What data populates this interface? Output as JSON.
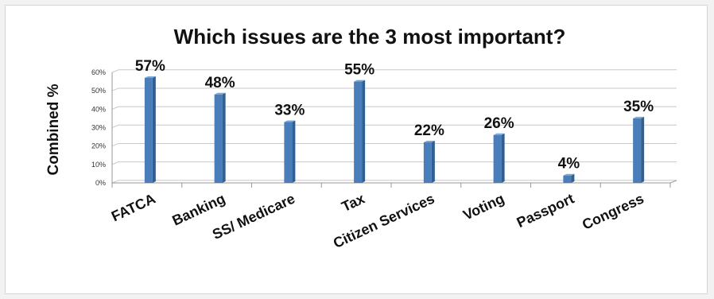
{
  "chart_data": {
    "type": "bar",
    "title": "Which issues are the 3 most important?",
    "ylabel": "Combined %",
    "xlabel": "",
    "ylim": [
      0,
      60
    ],
    "yticks": [
      "0%",
      "10%",
      "20%",
      "30%",
      "40%",
      "50%",
      "60%"
    ],
    "categories": [
      "FATCA",
      "Banking",
      "SS/ Medicare",
      "Tax",
      "Citizen Services",
      "Voting",
      "Passport",
      "Congress"
    ],
    "values": [
      57,
      48,
      33,
      55,
      22,
      26,
      4,
      35
    ],
    "data_labels": [
      "57%",
      "48%",
      "33%",
      "55%",
      "22%",
      "26%",
      "4%",
      "35%"
    ],
    "grid": true,
    "legend": "none",
    "colors": {
      "bar": "#4a7ebb",
      "bar_dark": "#2f5f93",
      "bar_light": "#7aa6d8",
      "grid": "#c8c8c8"
    }
  }
}
